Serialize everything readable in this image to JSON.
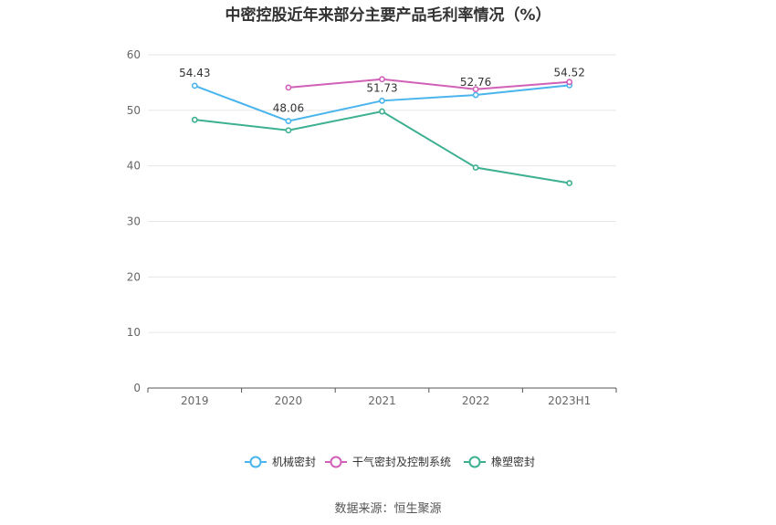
{
  "chart_data": {
    "type": "line",
    "title": "中密控股近年来部分主要产品毛利率情况（%）",
    "categories": [
      "2019",
      "2020",
      "2021",
      "2022",
      "2023H1"
    ],
    "ylim": [
      0,
      60
    ],
    "yticks": [
      0,
      10,
      20,
      30,
      40,
      50,
      60
    ],
    "grid": true,
    "legend_position": "bottom",
    "series": [
      {
        "name": "机械密封",
        "color": "#4ab4ec",
        "values": [
          54.43,
          48.06,
          51.73,
          52.76,
          54.52
        ],
        "labels": [
          "54.43",
          "48.06",
          "51.73",
          "52.76",
          "54.52"
        ]
      },
      {
        "name": "干气密封及控制系统",
        "color": "#d160b7",
        "values": [
          null,
          54.1,
          55.6,
          53.8,
          55.1
        ],
        "labels": [
          null,
          null,
          null,
          null,
          null
        ]
      },
      {
        "name": "橡塑密封",
        "color": "#3db091",
        "values": [
          48.3,
          46.4,
          49.8,
          39.7,
          36.9
        ],
        "labels": [
          null,
          null,
          null,
          null,
          null
        ]
      }
    ]
  },
  "source": "数据来源：恒生聚源"
}
